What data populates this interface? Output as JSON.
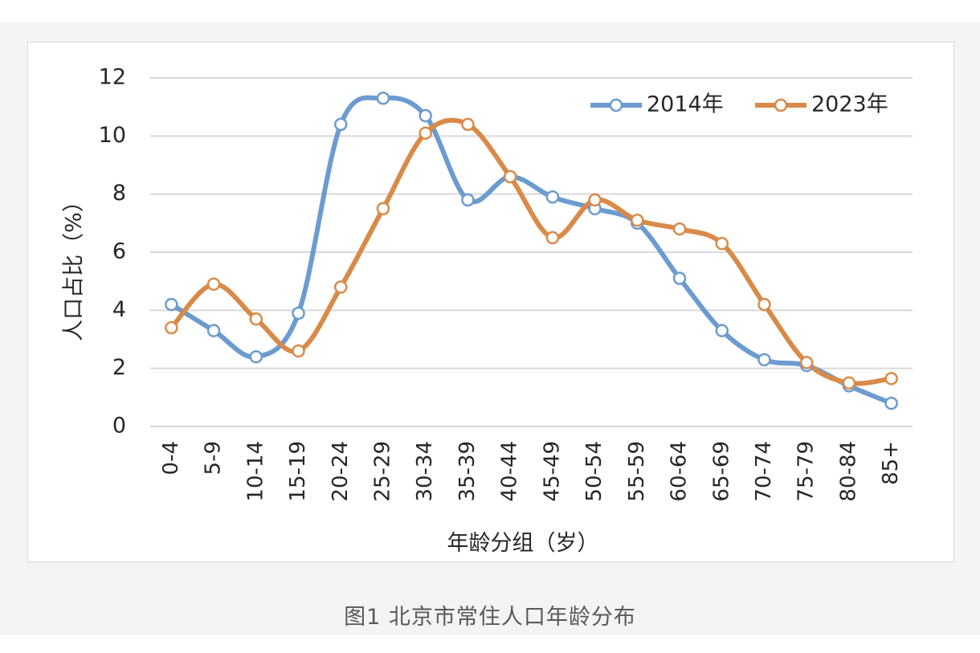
{
  "chart_data": {
    "type": "line",
    "smooth": true,
    "categories": [
      "0-4",
      "5-9",
      "10-14",
      "15-19",
      "20-24",
      "25-29",
      "30-34",
      "35-39",
      "40-44",
      "45-49",
      "50-54",
      "55-59",
      "60-64",
      "65-69",
      "70-74",
      "75-79",
      "80-84",
      "85+"
    ],
    "series": [
      {
        "name": "2014年",
        "color": "#6b9bcf",
        "values": [
          4.2,
          3.3,
          2.4,
          3.9,
          10.4,
          11.3,
          10.7,
          7.8,
          8.6,
          7.9,
          7.5,
          7.0,
          5.1,
          3.3,
          2.3,
          2.1,
          1.4,
          0.8
        ]
      },
      {
        "name": "2023年",
        "color": "#d98a48",
        "values": [
          3.4,
          4.9,
          3.7,
          2.6,
          4.8,
          7.5,
          10.1,
          10.4,
          8.6,
          6.5,
          7.8,
          7.1,
          6.8,
          6.3,
          4.2,
          2.2,
          1.5,
          1.65
        ]
      }
    ],
    "xlabel": "年龄分组（岁）",
    "ylabel": "人口占比（%）",
    "ylim": [
      0,
      12
    ],
    "yticks": [
      "0",
      "2",
      "4",
      "6",
      "8",
      "10",
      "12"
    ],
    "grid": true,
    "legend_position": "top-right"
  },
  "caption": "图1 北京市常住人口年龄分布"
}
